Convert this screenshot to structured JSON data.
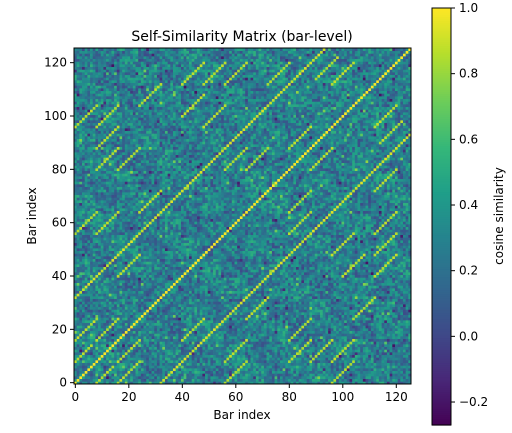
{
  "chart_data": {
    "type": "heatmap",
    "title": "Self-Similarity Matrix (bar-level)",
    "xlabel": "Bar index",
    "ylabel": "Bar index",
    "colorbar_label": "cosine similarity",
    "n_bars": 126,
    "xlim": [
      0,
      125
    ],
    "ylim": [
      0,
      125
    ],
    "x_ticks": [
      0,
      20,
      40,
      60,
      80,
      100,
      120
    ],
    "y_ticks": [
      0,
      20,
      40,
      60,
      80,
      100,
      120
    ],
    "origin": "lower",
    "colormap": "viridis",
    "value_range": [
      -0.27,
      1.0
    ],
    "colorbar_ticks": [
      -0.2,
      0.0,
      0.2,
      0.4,
      0.6,
      0.8,
      1.0
    ],
    "colorbar_tick_labels": [
      "−0.2",
      "0.0",
      "0.2",
      "0.4",
      "0.6",
      "0.8",
      "1.0"
    ],
    "background_mean": 0.28,
    "diagonal_value": 1.0,
    "repeated_segments": [
      {
        "offset": 32,
        "start": 0,
        "end": 94,
        "value": 0.95
      },
      {
        "offset": 8,
        "start": 0,
        "end": 6,
        "value": 0.9
      },
      {
        "offset": 8,
        "start": 8,
        "end": 16,
        "value": 0.9
      },
      {
        "offset": 16,
        "start": 0,
        "end": 8,
        "value": 0.9
      },
      {
        "offset": 24,
        "start": 16,
        "end": 24,
        "value": 0.9
      },
      {
        "offset": 40,
        "start": 24,
        "end": 32,
        "value": 0.9
      },
      {
        "offset": 48,
        "start": 8,
        "end": 16,
        "value": 0.9
      },
      {
        "offset": 56,
        "start": 0,
        "end": 8,
        "value": 0.9
      },
      {
        "offset": 64,
        "start": 16,
        "end": 24,
        "value": 0.9
      },
      {
        "offset": 72,
        "start": 8,
        "end": 16,
        "value": 0.9
      },
      {
        "offset": 80,
        "start": 24,
        "end": 32,
        "value": 0.9
      },
      {
        "offset": 96,
        "start": 0,
        "end": 8,
        "value": 0.9
      },
      {
        "offset": 88,
        "start": 8,
        "end": 16,
        "value": 0.9
      },
      {
        "offset": 60,
        "start": 40,
        "end": 48,
        "value": 0.9
      },
      {
        "offset": 64,
        "start": 48,
        "end": 56,
        "value": 0.9
      },
      {
        "offset": 56,
        "start": 56,
        "end": 64,
        "value": 0.9
      },
      {
        "offset": 40,
        "start": 72,
        "end": 80,
        "value": 0.9
      },
      {
        "offset": 24,
        "start": 90,
        "end": 98,
        "value": 0.9
      },
      {
        "offset": 16,
        "start": 96,
        "end": 104,
        "value": 0.9
      },
      {
        "offset": 48,
        "start": 48,
        "end": 56,
        "value": 0.9
      },
      {
        "offset": 72,
        "start": 40,
        "end": 48,
        "value": 0.9
      },
      {
        "offset": 80,
        "start": 8,
        "end": 16,
        "value": 0.9
      },
      {
        "offset": 24,
        "start": 56,
        "end": 64,
        "value": 0.9
      },
      {
        "offset": 16,
        "start": 64,
        "end": 72,
        "value": 0.9
      },
      {
        "offset": 8,
        "start": 80,
        "end": 88,
        "value": 0.9
      }
    ]
  }
}
